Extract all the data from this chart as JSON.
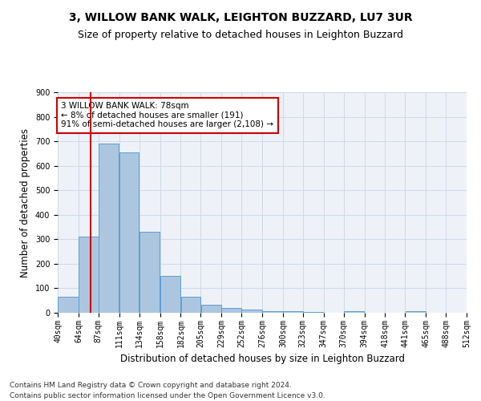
{
  "title": "3, WILLOW BANK WALK, LEIGHTON BUZZARD, LU7 3UR",
  "subtitle": "Size of property relative to detached houses in Leighton Buzzard",
  "xlabel": "Distribution of detached houses by size in Leighton Buzzard",
  "ylabel": "Number of detached properties",
  "footnote1": "Contains HM Land Registry data © Crown copyright and database right 2024.",
  "footnote2": "Contains public sector information licensed under the Open Government Licence v3.0.",
  "bar_left_edges": [
    40,
    64,
    87,
    111,
    134,
    158,
    182,
    205,
    229,
    252,
    276,
    300,
    323,
    347,
    370,
    394,
    418,
    441,
    465,
    488
  ],
  "bar_widths": [
    24,
    23,
    24,
    23,
    24,
    24,
    23,
    24,
    23,
    24,
    24,
    23,
    24,
    23,
    24,
    24,
    23,
    24,
    23,
    24
  ],
  "bar_heights": [
    65,
    310,
    690,
    655,
    330,
    150,
    67,
    32,
    20,
    12,
    8,
    5,
    3,
    0,
    5,
    0,
    0,
    8,
    0,
    0
  ],
  "bar_color": "#adc6e0",
  "bar_edge_color": "#5a9fd4",
  "property_sqm": 78,
  "red_line_color": "#cc0000",
  "annotation_text": "3 WILLOW BANK WALK: 78sqm\n← 8% of detached houses are smaller (191)\n91% of semi-detached houses are larger (2,108) →",
  "annotation_box_color": "#cc0000",
  "annotation_text_color": "#000000",
  "ylim": [
    0,
    900
  ],
  "xlim": [
    40,
    512
  ],
  "yticks": [
    0,
    100,
    200,
    300,
    400,
    500,
    600,
    700,
    800,
    900
  ],
  "xtick_labels": [
    "40sqm",
    "64sqm",
    "87sqm",
    "111sqm",
    "134sqm",
    "158sqm",
    "182sqm",
    "205sqm",
    "229sqm",
    "252sqm",
    "276sqm",
    "300sqm",
    "323sqm",
    "347sqm",
    "370sqm",
    "394sqm",
    "418sqm",
    "441sqm",
    "465sqm",
    "488sqm",
    "512sqm"
  ],
  "xtick_positions": [
    40,
    64,
    87,
    111,
    134,
    158,
    182,
    205,
    229,
    252,
    276,
    300,
    323,
    347,
    370,
    394,
    418,
    441,
    465,
    488,
    512
  ],
  "grid_color": "#d0d8e8",
  "bg_color": "#eef2f8",
  "title_fontsize": 10,
  "subtitle_fontsize": 9,
  "axis_label_fontsize": 8.5,
  "tick_fontsize": 7,
  "annotation_fontsize": 7.5,
  "footnote_fontsize": 6.5
}
